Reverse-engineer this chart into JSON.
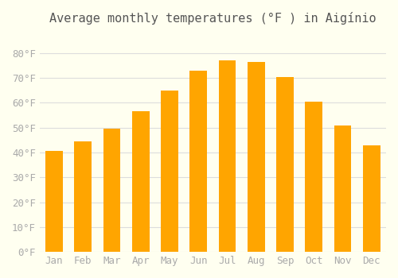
{
  "title": "Average monthly temperatures (°F ) in Aigínio",
  "months": [
    "Jan",
    "Feb",
    "Mar",
    "Apr",
    "May",
    "Jun",
    "Jul",
    "Aug",
    "Sep",
    "Oct",
    "Nov",
    "Dec"
  ],
  "values": [
    40.5,
    44.5,
    49.5,
    56.5,
    65.0,
    73.0,
    77.0,
    76.5,
    70.5,
    60.5,
    51.0,
    43.0
  ],
  "bar_color": "#FFA500",
  "bar_edge_color": "#FFB733",
  "background_color": "#FFFFF0",
  "grid_color": "#DDDDDD",
  "text_color": "#AAAAAA",
  "ylim": [
    0,
    88
  ],
  "yticks": [
    0,
    10,
    20,
    30,
    40,
    50,
    60,
    70,
    80
  ],
  "title_fontsize": 11,
  "tick_fontsize": 9
}
